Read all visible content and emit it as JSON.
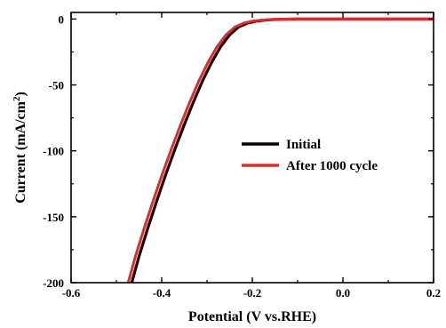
{
  "chart_data": {
    "type": "line",
    "xlabel": "Potential (V vs.RHE)",
    "ylabel": "Current (mA/cm",
    "ylabel_superscript": "2",
    "ylabel_suffix": ")",
    "xlim": [
      -0.6,
      0.2
    ],
    "ylim": [
      -200,
      5
    ],
    "x_ticks": [
      -0.6,
      -0.4,
      -0.2,
      0.0,
      0.2
    ],
    "x_tick_labels": [
      "-0.6",
      "-0.4",
      "-0.2",
      "0.0",
      "0.2"
    ],
    "y_ticks": [
      0,
      -50,
      -100,
      -150,
      -200
    ],
    "y_tick_labels": [
      "0",
      "-50",
      "-100",
      "-150",
      "-200"
    ],
    "grid": false,
    "legend_position": "center-right",
    "series": [
      {
        "name": "Initial",
        "color": "#000000",
        "x": [
          -0.466,
          -0.45,
          -0.43,
          -0.41,
          -0.39,
          -0.37,
          -0.35,
          -0.33,
          -0.31,
          -0.29,
          -0.27,
          -0.25,
          -0.23,
          -0.21,
          -0.19,
          -0.17,
          -0.15,
          -0.13,
          -0.1,
          -0.05,
          0.0,
          0.05,
          0.1,
          0.15,
          0.2
        ],
        "y": [
          -200,
          -180,
          -158,
          -137,
          -117,
          -98,
          -80,
          -63,
          -47,
          -33,
          -21,
          -12,
          -6,
          -3,
          -1.5,
          -0.7,
          -0.3,
          -0.1,
          0,
          0,
          0,
          0,
          0,
          0,
          0
        ]
      },
      {
        "name": "After 1000 cycle",
        "color": "#e8282b",
        "x": [
          -0.474,
          -0.458,
          -0.438,
          -0.418,
          -0.398,
          -0.378,
          -0.358,
          -0.338,
          -0.318,
          -0.298,
          -0.278,
          -0.258,
          -0.238,
          -0.218,
          -0.198,
          -0.178,
          -0.158,
          -0.138,
          -0.11,
          -0.05,
          0.0,
          0.05,
          0.1,
          0.15,
          0.2
        ],
        "y": [
          -200,
          -180,
          -158,
          -137,
          -117,
          -98,
          -80,
          -63,
          -47,
          -33,
          -21,
          -12,
          -6,
          -3,
          -1.5,
          -0.7,
          -0.3,
          -0.1,
          0,
          0,
          0,
          0,
          0,
          0,
          0
        ]
      }
    ]
  }
}
